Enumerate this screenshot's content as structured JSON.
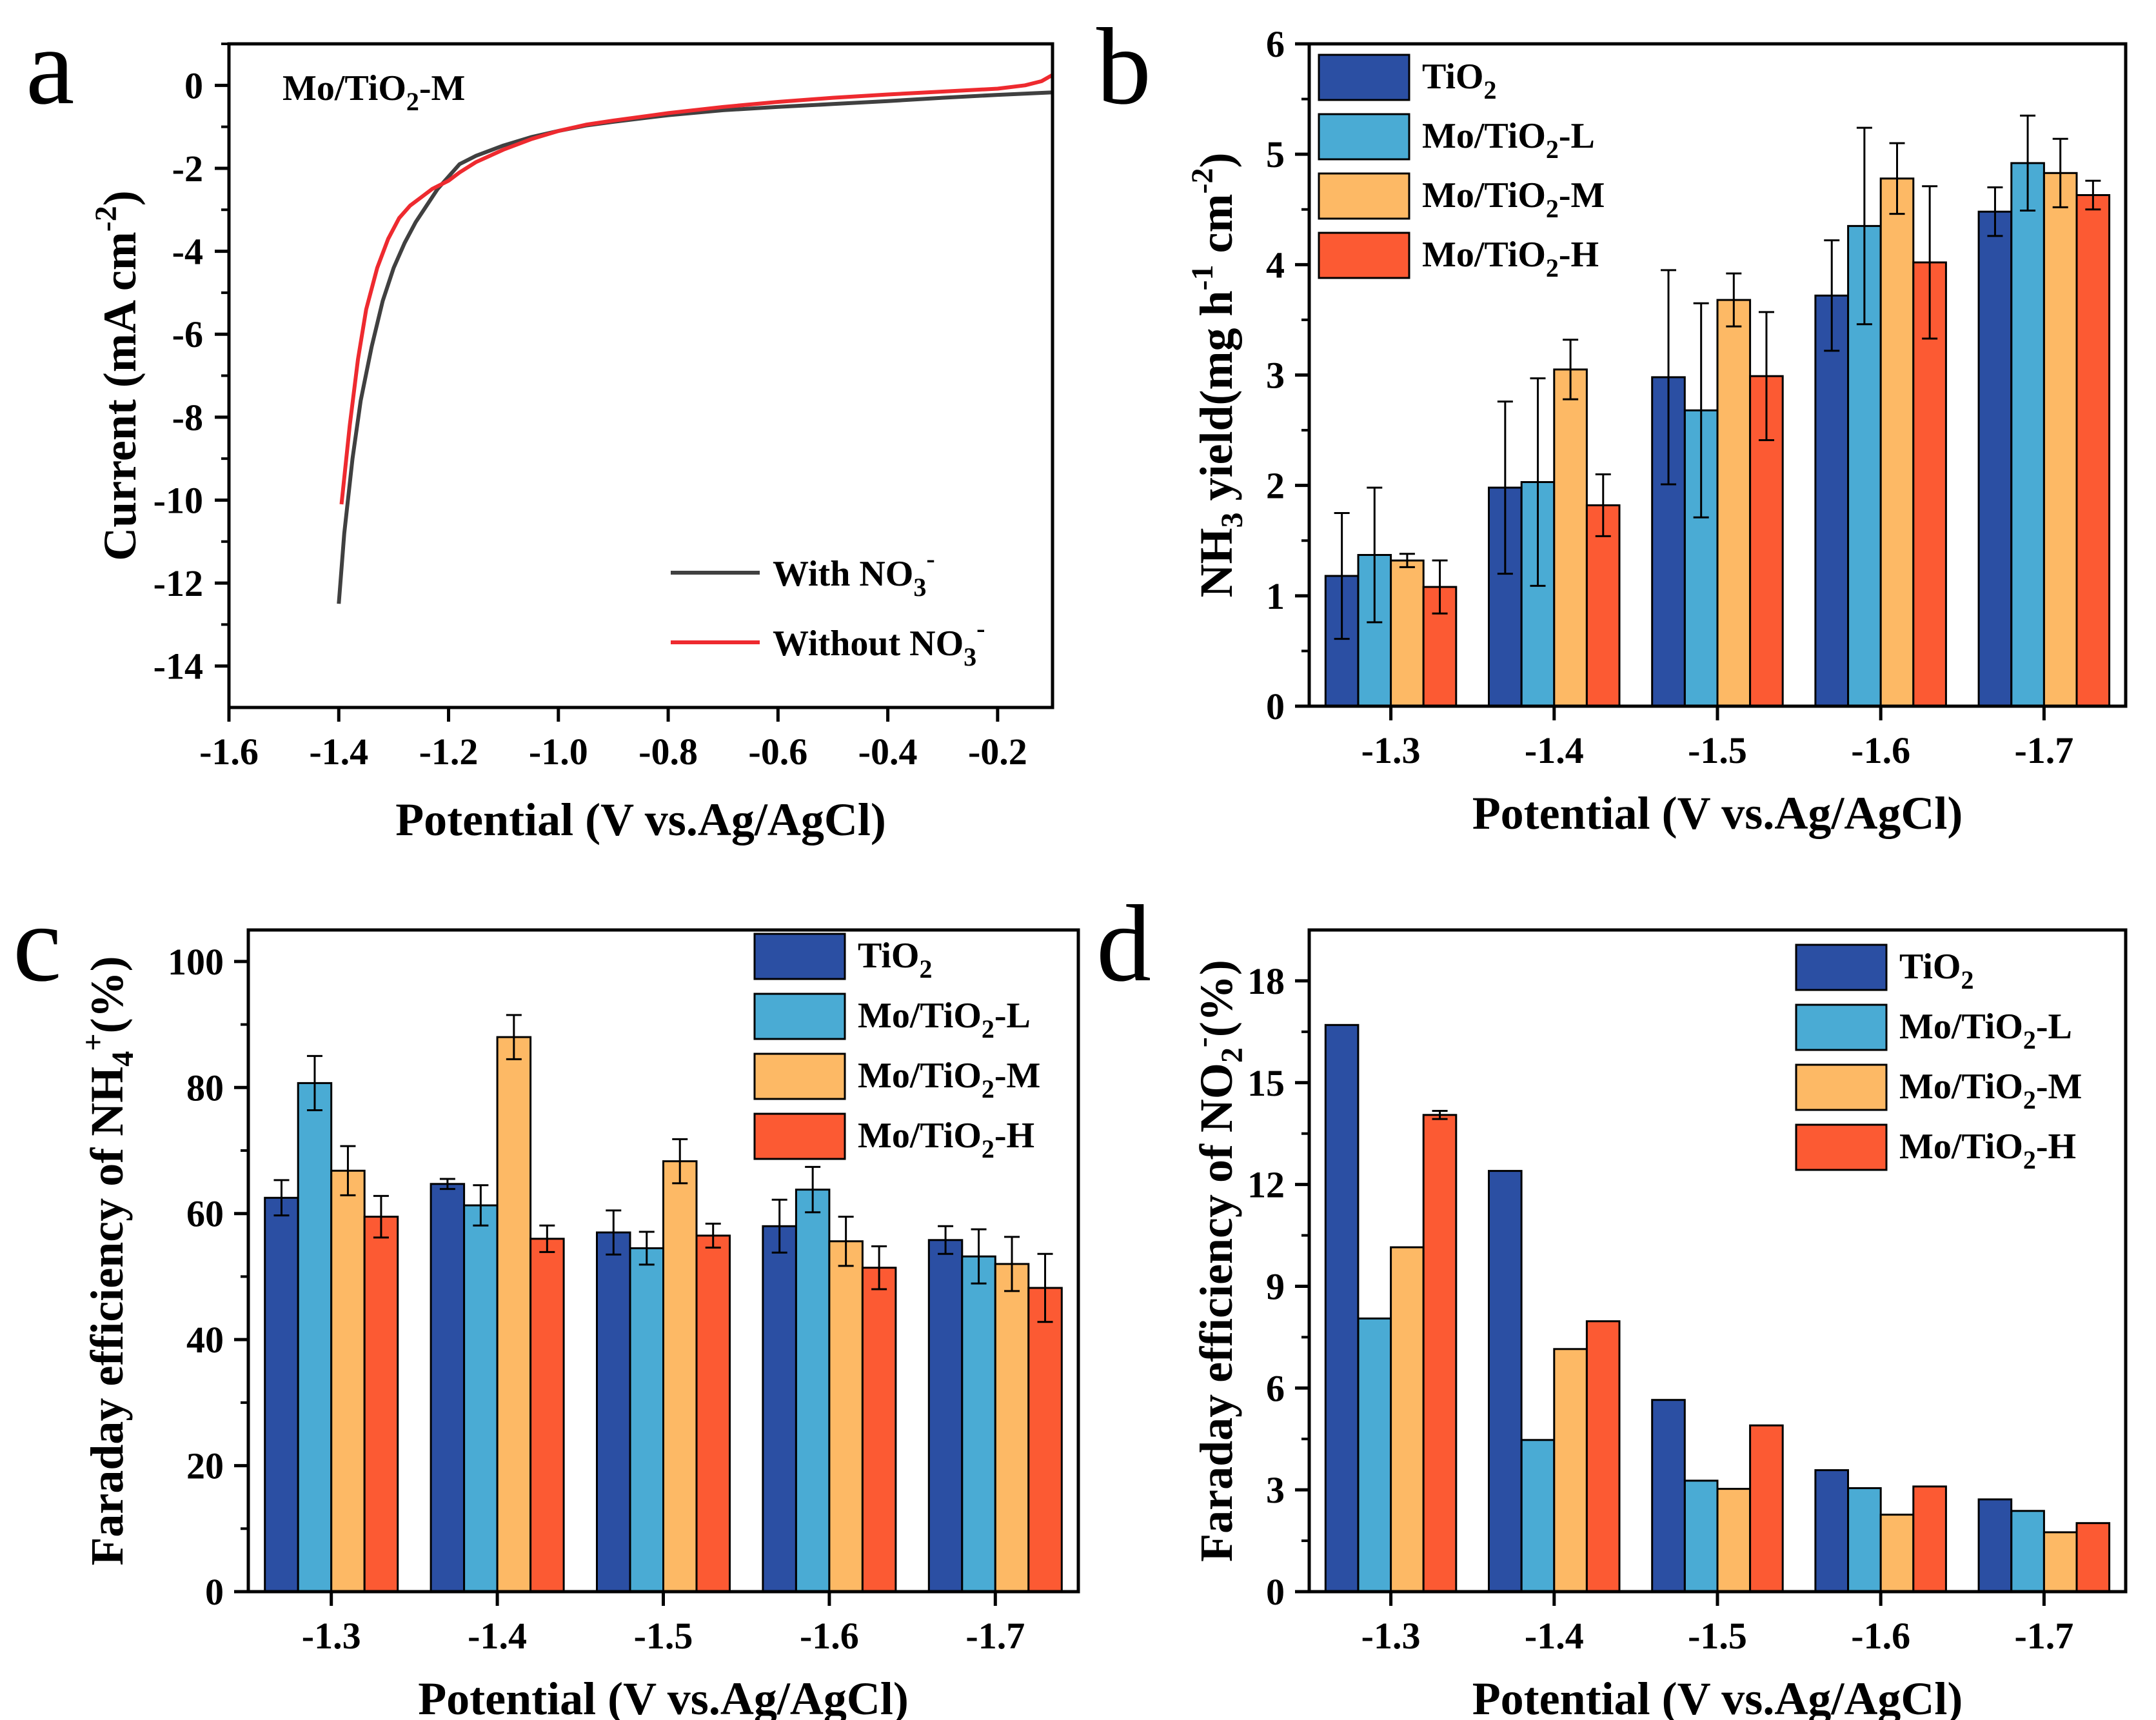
{
  "colors": {
    "TiO2": "#2B4FA3",
    "Mo_L": "#4AABD4",
    "Mo_M": "#FDB965",
    "Mo_H": "#FC5A33",
    "with_no3": "#404040",
    "without_no3": "#EE2A2F"
  },
  "chart_data": [
    {
      "id": "a",
      "type": "line",
      "panel_label": "a",
      "annotation": "Mo/TiO2-M",
      "xlabel": "Potential (V vs.Ag/AgCl)",
      "ylabel": "Current (mA cm-2)",
      "xlim": [
        -1.6,
        -0.1
      ],
      "ylim": [
        -15,
        1
      ],
      "x_ticks": [
        -1.6,
        -1.4,
        -1.2,
        -1.0,
        -0.8,
        -0.6,
        -0.4,
        -0.2
      ],
      "x_tick_labels": [
        "-1.6",
        "-1.4",
        "-1.2",
        "-1.0",
        "-0.8",
        "-0.6",
        "-0.4",
        "-0.2"
      ],
      "y_ticks": [
        0,
        -2,
        -4,
        -6,
        -8,
        -10,
        -12,
        -14
      ],
      "y_tick_labels": [
        "0",
        "-2",
        "-4",
        "-6",
        "-8",
        "-10",
        "-12",
        "-14"
      ],
      "series": [
        {
          "name": "With NO3-",
          "color_key": "with_no3",
          "x": [
            -1.4,
            -1.39,
            -1.375,
            -1.36,
            -1.34,
            -1.32,
            -1.3,
            -1.28,
            -1.26,
            -1.24,
            -1.22,
            -1.2,
            -1.18,
            -1.15,
            -1.1,
            -1.05,
            -1.0,
            -0.95,
            -0.9,
            -0.8,
            -0.7,
            -0.6,
            -0.5,
            -0.4,
            -0.3,
            -0.2,
            -0.1
          ],
          "y": [
            -12.5,
            -10.8,
            -9.0,
            -7.6,
            -6.3,
            -5.2,
            -4.4,
            -3.8,
            -3.3,
            -2.9,
            -2.5,
            -2.2,
            -1.9,
            -1.7,
            -1.45,
            -1.25,
            -1.1,
            -0.97,
            -0.88,
            -0.72,
            -0.6,
            -0.52,
            -0.45,
            -0.38,
            -0.3,
            -0.23,
            -0.17
          ]
        },
        {
          "name": "Without NO3-",
          "color_key": "without_no3",
          "x": [
            -1.395,
            -1.38,
            -1.365,
            -1.35,
            -1.33,
            -1.31,
            -1.29,
            -1.27,
            -1.25,
            -1.23,
            -1.2,
            -1.18,
            -1.15,
            -1.1,
            -1.05,
            -1.0,
            -0.95,
            -0.9,
            -0.8,
            -0.7,
            -0.6,
            -0.5,
            -0.4,
            -0.3,
            -0.2,
            -0.15,
            -0.12,
            -0.1
          ],
          "y": [
            -10.1,
            -8.2,
            -6.6,
            -5.4,
            -4.4,
            -3.7,
            -3.2,
            -2.9,
            -2.7,
            -2.5,
            -2.3,
            -2.1,
            -1.85,
            -1.55,
            -1.3,
            -1.1,
            -0.95,
            -0.85,
            -0.67,
            -0.52,
            -0.4,
            -0.3,
            -0.22,
            -0.15,
            -0.08,
            0.0,
            0.1,
            0.25
          ]
        }
      ],
      "legend": {
        "position": "bottom-right",
        "entries": [
          {
            "label": "With NO",
            "sub": "3",
            "sup": "-",
            "color_key": "with_no3"
          },
          {
            "label": "Without NO",
            "sub": "3",
            "sup": "-",
            "color_key": "without_no3"
          }
        ]
      }
    },
    {
      "id": "b",
      "type": "bar",
      "panel_label": "b",
      "xlabel": "Potential (V vs.Ag/AgCl)",
      "ylabel": "NH3 yield(mg h-1 cm-2)",
      "ylim": [
        0,
        6
      ],
      "y_ticks": [
        0,
        1,
        2,
        3,
        4,
        5,
        6
      ],
      "categories": [
        "-1.3",
        "-1.4",
        "-1.5",
        "-1.6",
        "-1.7"
      ],
      "series": [
        {
          "name": "TiO2",
          "color_key": "TiO2",
          "values": [
            1.18,
            1.98,
            2.98,
            3.72,
            4.48
          ],
          "errors": [
            0.57,
            0.78,
            0.97,
            0.5,
            0.22
          ]
        },
        {
          "name": "Mo/TiO2-L",
          "color_key": "Mo_L",
          "values": [
            1.37,
            2.03,
            2.68,
            4.35,
            4.92
          ],
          "errors": [
            0.61,
            0.94,
            0.97,
            0.89,
            0.43
          ]
        },
        {
          "name": "Mo/TiO2-M",
          "color_key": "Mo_M",
          "values": [
            1.32,
            3.05,
            3.68,
            4.78,
            4.83
          ],
          "errors": [
            0.06,
            0.27,
            0.24,
            0.32,
            0.31
          ]
        },
        {
          "name": "Mo/TiO2-H",
          "color_key": "Mo_H",
          "values": [
            1.08,
            1.82,
            2.99,
            4.02,
            4.63
          ],
          "errors": [
            0.24,
            0.28,
            0.58,
            0.69,
            0.13
          ]
        }
      ],
      "legend": {
        "position": "top-left",
        "entries": [
          {
            "label": "TiO",
            "sub": "2",
            "tail": ""
          },
          {
            "label": "Mo/TiO",
            "sub": "2",
            "tail": "-L"
          },
          {
            "label": "Mo/TiO",
            "sub": "2",
            "tail": "-M"
          },
          {
            "label": "Mo/TiO",
            "sub": "2",
            "tail": "-H"
          }
        ]
      }
    },
    {
      "id": "c",
      "type": "bar",
      "panel_label": "c",
      "xlabel": "Potential (V vs.Ag/AgCl)",
      "ylabel": "Faraday efficiency of NH4+(%)",
      "ylim": [
        0,
        105
      ],
      "y_ticks": [
        0,
        20,
        40,
        60,
        80,
        100
      ],
      "categories": [
        "-1.3",
        "-1.4",
        "-1.5",
        "-1.6",
        "-1.7"
      ],
      "series": [
        {
          "name": "TiO2",
          "color_key": "TiO2",
          "values": [
            62.5,
            64.7,
            57.0,
            58.0,
            55.8
          ],
          "errors": [
            2.8,
            0.8,
            3.5,
            4.2,
            2.2
          ]
        },
        {
          "name": "Mo/TiO2-L",
          "color_key": "Mo_L",
          "values": [
            80.7,
            61.3,
            54.5,
            63.8,
            53.2
          ],
          "errors": [
            4.3,
            3.2,
            2.6,
            3.6,
            4.3
          ]
        },
        {
          "name": "Mo/TiO2-M",
          "color_key": "Mo_M",
          "values": [
            66.8,
            88.0,
            68.3,
            55.6,
            52.0
          ],
          "errors": [
            3.9,
            3.5,
            3.5,
            3.9,
            4.3
          ]
        },
        {
          "name": "Mo/TiO2-H",
          "color_key": "Mo_H",
          "values": [
            59.5,
            56.0,
            56.5,
            51.4,
            48.2
          ],
          "errors": [
            3.3,
            2.1,
            1.9,
            3.4,
            5.4
          ]
        }
      ],
      "legend": {
        "position": "top-right",
        "entries": [
          {
            "label": "TiO",
            "sub": "2",
            "tail": ""
          },
          {
            "label": "Mo/TiO",
            "sub": "2",
            "tail": "-L"
          },
          {
            "label": "Mo/TiO",
            "sub": "2",
            "tail": "-M"
          },
          {
            "label": "Mo/TiO",
            "sub": "2",
            "tail": "-H"
          }
        ]
      }
    },
    {
      "id": "d",
      "type": "bar",
      "panel_label": "d",
      "xlabel": "Potential (V vs.Ag/AgCl)",
      "ylabel": "Faraday efficiency of NO2-(%)",
      "ylim": [
        0,
        19.5
      ],
      "y_ticks": [
        0,
        3,
        6,
        9,
        12,
        15,
        18
      ],
      "categories": [
        "-1.3",
        "-1.4",
        "-1.5",
        "-1.6",
        "-1.7"
      ],
      "series": [
        {
          "name": "TiO2",
          "color_key": "TiO2",
          "values": [
            16.7,
            12.4,
            5.65,
            3.58,
            2.72
          ],
          "errors": [
            0,
            0,
            0,
            0,
            0
          ]
        },
        {
          "name": "Mo/TiO2-L",
          "color_key": "Mo_L",
          "values": [
            8.05,
            4.47,
            3.27,
            3.05,
            2.38
          ],
          "errors": [
            0,
            0,
            0,
            0,
            0
          ]
        },
        {
          "name": "Mo/TiO2-M",
          "color_key": "Mo_M",
          "values": [
            10.15,
            7.15,
            3.03,
            2.27,
            1.75
          ],
          "errors": [
            0,
            0,
            0,
            0,
            0
          ]
        },
        {
          "name": "Mo/TiO2-H",
          "color_key": "Mo_H",
          "values": [
            14.05,
            7.97,
            4.9,
            3.1,
            2.02
          ],
          "errors": [
            0.12,
            0,
            0,
            0,
            0
          ]
        }
      ],
      "legend": {
        "position": "top-right",
        "entries": [
          {
            "label": "TiO",
            "sub": "2",
            "tail": ""
          },
          {
            "label": "Mo/TiO",
            "sub": "2",
            "tail": "-L"
          },
          {
            "label": "Mo/TiO",
            "sub": "2",
            "tail": "-M"
          },
          {
            "label": "Mo/TiO",
            "sub": "2",
            "tail": "-H"
          }
        ]
      }
    }
  ]
}
